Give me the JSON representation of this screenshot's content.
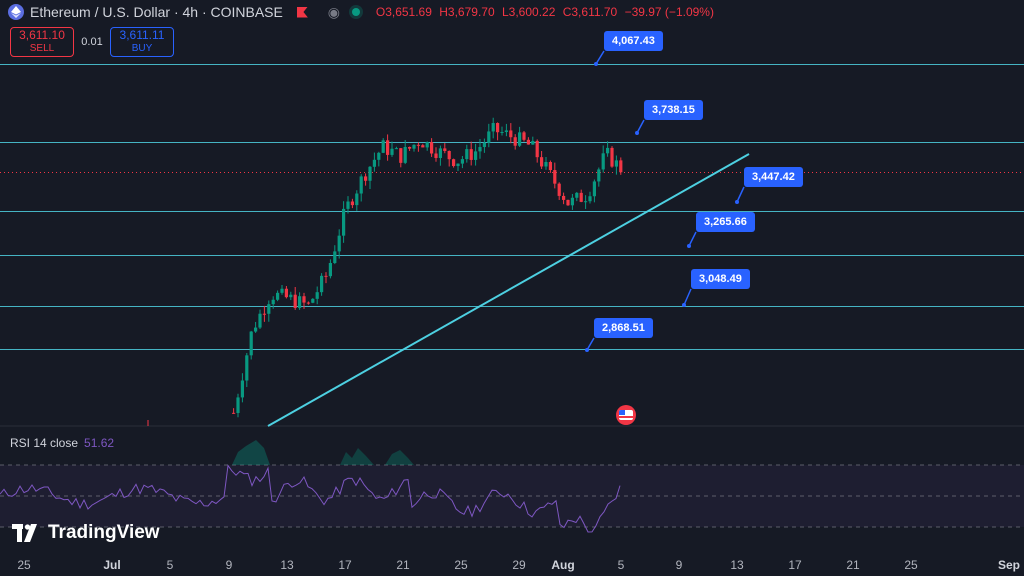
{
  "header": {
    "symbol_title": "Ethereum / U.S. Dollar · 4h · COINBASE",
    "open": "O3,651.69",
    "high": "H3,679.70",
    "low": "L3,600.22",
    "close": "C3,611.70",
    "change": "−39.97 (−1.09%)"
  },
  "trade": {
    "sell_price": "3,611.10",
    "sell_label": "SELL",
    "spread": "0.01",
    "buy_price": "3,611.11",
    "buy_label": "BUY"
  },
  "price_labels": [
    "4,067.43",
    "3,738.15",
    "3,447.42",
    "3,265.66",
    "3,048.49",
    "2,868.51"
  ],
  "rsi": {
    "label": "RSI 14 close",
    "value": "51.62"
  },
  "logo_text": "TradingView",
  "xaxis": [
    "25",
    "Jul",
    "5",
    "9",
    "13",
    "17",
    "21",
    "25",
    "29",
    "Aug",
    "5",
    "9",
    "13",
    "17",
    "21",
    "25",
    "Sep"
  ],
  "colors": {
    "background": "#161a25",
    "up": "#089981",
    "down": "#f23645",
    "level_line": "#4dd0e1",
    "label_bg": "#2962ff",
    "rsi": "#7e57c2"
  },
  "chart_data": {
    "type": "candlestick",
    "horizontal_levels": [
      4067.43,
      3738.15,
      3447.42,
      3265.66,
      3048.49,
      2868.51
    ],
    "close": [
      2600,
      2950,
      3100,
      3080,
      3050,
      3180,
      3450,
      3600,
      3720,
      3680,
      3750,
      3700,
      3660,
      3700,
      3790,
      3760,
      3720,
      3600,
      3480,
      3520,
      3690,
      3612
    ],
    "rsi_value": 51.62
  }
}
